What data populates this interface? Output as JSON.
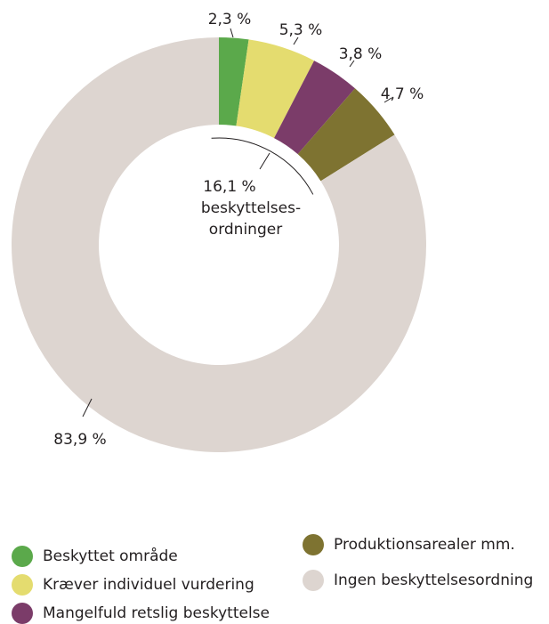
{
  "chart_data": {
    "type": "donut",
    "labels": [
      "Beskyttet område",
      "Kræver individuel vurdering",
      "Mangelfuld retslig beskyttelse",
      "Produktionsarealer mm.",
      "Ingen beskyttelsesordning"
    ],
    "values": [
      2.3,
      5.3,
      3.8,
      4.7,
      83.9
    ],
    "value_labels": [
      "2,3 %",
      "5,3 %",
      "3,8 %",
      "4,7 %",
      "83,9 %"
    ],
    "colors": [
      "#5ba94b",
      "#e4dc6f",
      "#7b3c69",
      "#7e7331",
      "#ddd5d0"
    ],
    "annotation": [
      "16,1 %",
      "beskyttelses-",
      "ordninger"
    ]
  }
}
